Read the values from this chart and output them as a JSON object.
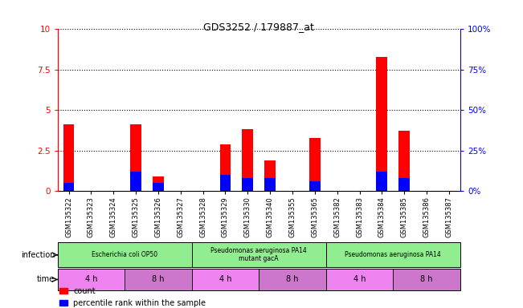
{
  "title": "GDS3252 / 179887_at",
  "samples": [
    "GSM135322",
    "GSM135323",
    "GSM135324",
    "GSM135325",
    "GSM135326",
    "GSM135327",
    "GSM135328",
    "GSM135329",
    "GSM135330",
    "GSM135340",
    "GSM135355",
    "GSM135365",
    "GSM135382",
    "GSM135383",
    "GSM135384",
    "GSM135385",
    "GSM135386",
    "GSM135387"
  ],
  "count_values": [
    4.1,
    0.0,
    0.0,
    4.1,
    0.9,
    0.0,
    0.0,
    2.9,
    3.8,
    1.9,
    0.0,
    3.3,
    0.0,
    0.0,
    8.3,
    3.7,
    0.0,
    0.0
  ],
  "percentile_values": [
    5,
    0,
    0,
    12,
    5,
    0,
    0,
    10,
    8,
    8,
    0,
    6,
    0,
    0,
    12,
    8,
    0,
    0
  ],
  "bar_color_red": "#ff0000",
  "bar_color_blue": "#0000ff",
  "ylim_left": [
    0,
    10
  ],
  "ylim_right": [
    0,
    100
  ],
  "yticks_left": [
    0,
    2.5,
    5.0,
    7.5,
    10
  ],
  "yticks_right": [
    0,
    25,
    50,
    75,
    100
  ],
  "ytick_labels_left": [
    "0",
    "2.5",
    "5",
    "7.5",
    "10"
  ],
  "ytick_labels_right": [
    "0%",
    "25%",
    "50%",
    "75%",
    "100%"
  ],
  "infection_groups": [
    {
      "label": "Escherichia coli OP50",
      "start": 0,
      "end": 6,
      "color": "#90ee90"
    },
    {
      "label": "Pseudomonas aeruginosa PA14\nmutant gacA",
      "start": 6,
      "end": 12,
      "color": "#90ee90"
    },
    {
      "label": "Pseudomonas aeruginosa PA14",
      "start": 12,
      "end": 18,
      "color": "#90ee90"
    }
  ],
  "time_groups": [
    {
      "label": "4 h",
      "start": 0,
      "end": 3,
      "color": "#ee82ee"
    },
    {
      "label": "8 h",
      "start": 3,
      "end": 6,
      "color": "#cc77cc"
    },
    {
      "label": "4 h",
      "start": 6,
      "end": 9,
      "color": "#ee82ee"
    },
    {
      "label": "8 h",
      "start": 9,
      "end": 12,
      "color": "#cc77cc"
    },
    {
      "label": "4 h",
      "start": 12,
      "end": 15,
      "color": "#ee82ee"
    },
    {
      "label": "8 h",
      "start": 15,
      "end": 18,
      "color": "#cc77cc"
    }
  ],
  "legend_count_label": "count",
  "legend_percentile_label": "percentile rank within the sample",
  "infection_label": "infection",
  "time_label": "time",
  "bar_width": 0.5
}
